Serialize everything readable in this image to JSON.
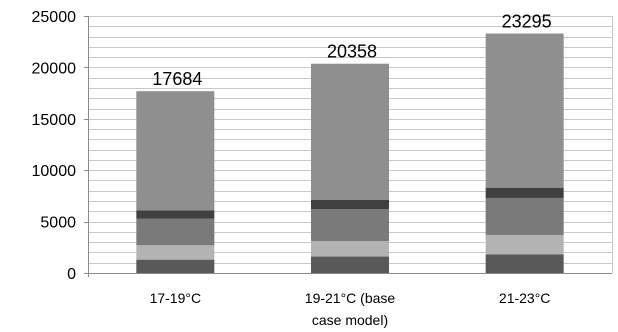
{
  "chart_data": {
    "type": "bar",
    "stacked": true,
    "categories": [
      "17-19°C",
      "19-21°C (base case model)",
      "21-23°C"
    ],
    "category_lines": [
      [
        "17-19°C"
      ],
      [
        "19-21°C (base",
        "case model)"
      ],
      [
        "21-23°C"
      ]
    ],
    "series": [
      {
        "values": [
          1300,
          1600,
          1800
        ],
        "color": "#595959"
      },
      {
        "values": [
          1400,
          1500,
          1900
        ],
        "color": "#b3b3b3"
      },
      {
        "values": [
          2600,
          3100,
          3600
        ],
        "color": "#7a7a7a"
      },
      {
        "values": [
          800,
          900,
          1000
        ],
        "color": "#404040"
      },
      {
        "values": [
          11584,
          13258,
          14995
        ],
        "color": "#8f8f8f"
      }
    ],
    "totals": [
      "17684",
      "20358",
      "23295"
    ],
    "yticks": [
      "0",
      "5000",
      "10000",
      "15000",
      "20000",
      "25000"
    ],
    "ylim": [
      0,
      25000
    ],
    "minor_grid_step": 1000,
    "grid": true,
    "title": "",
    "xlabel": "",
    "ylabel": ""
  }
}
